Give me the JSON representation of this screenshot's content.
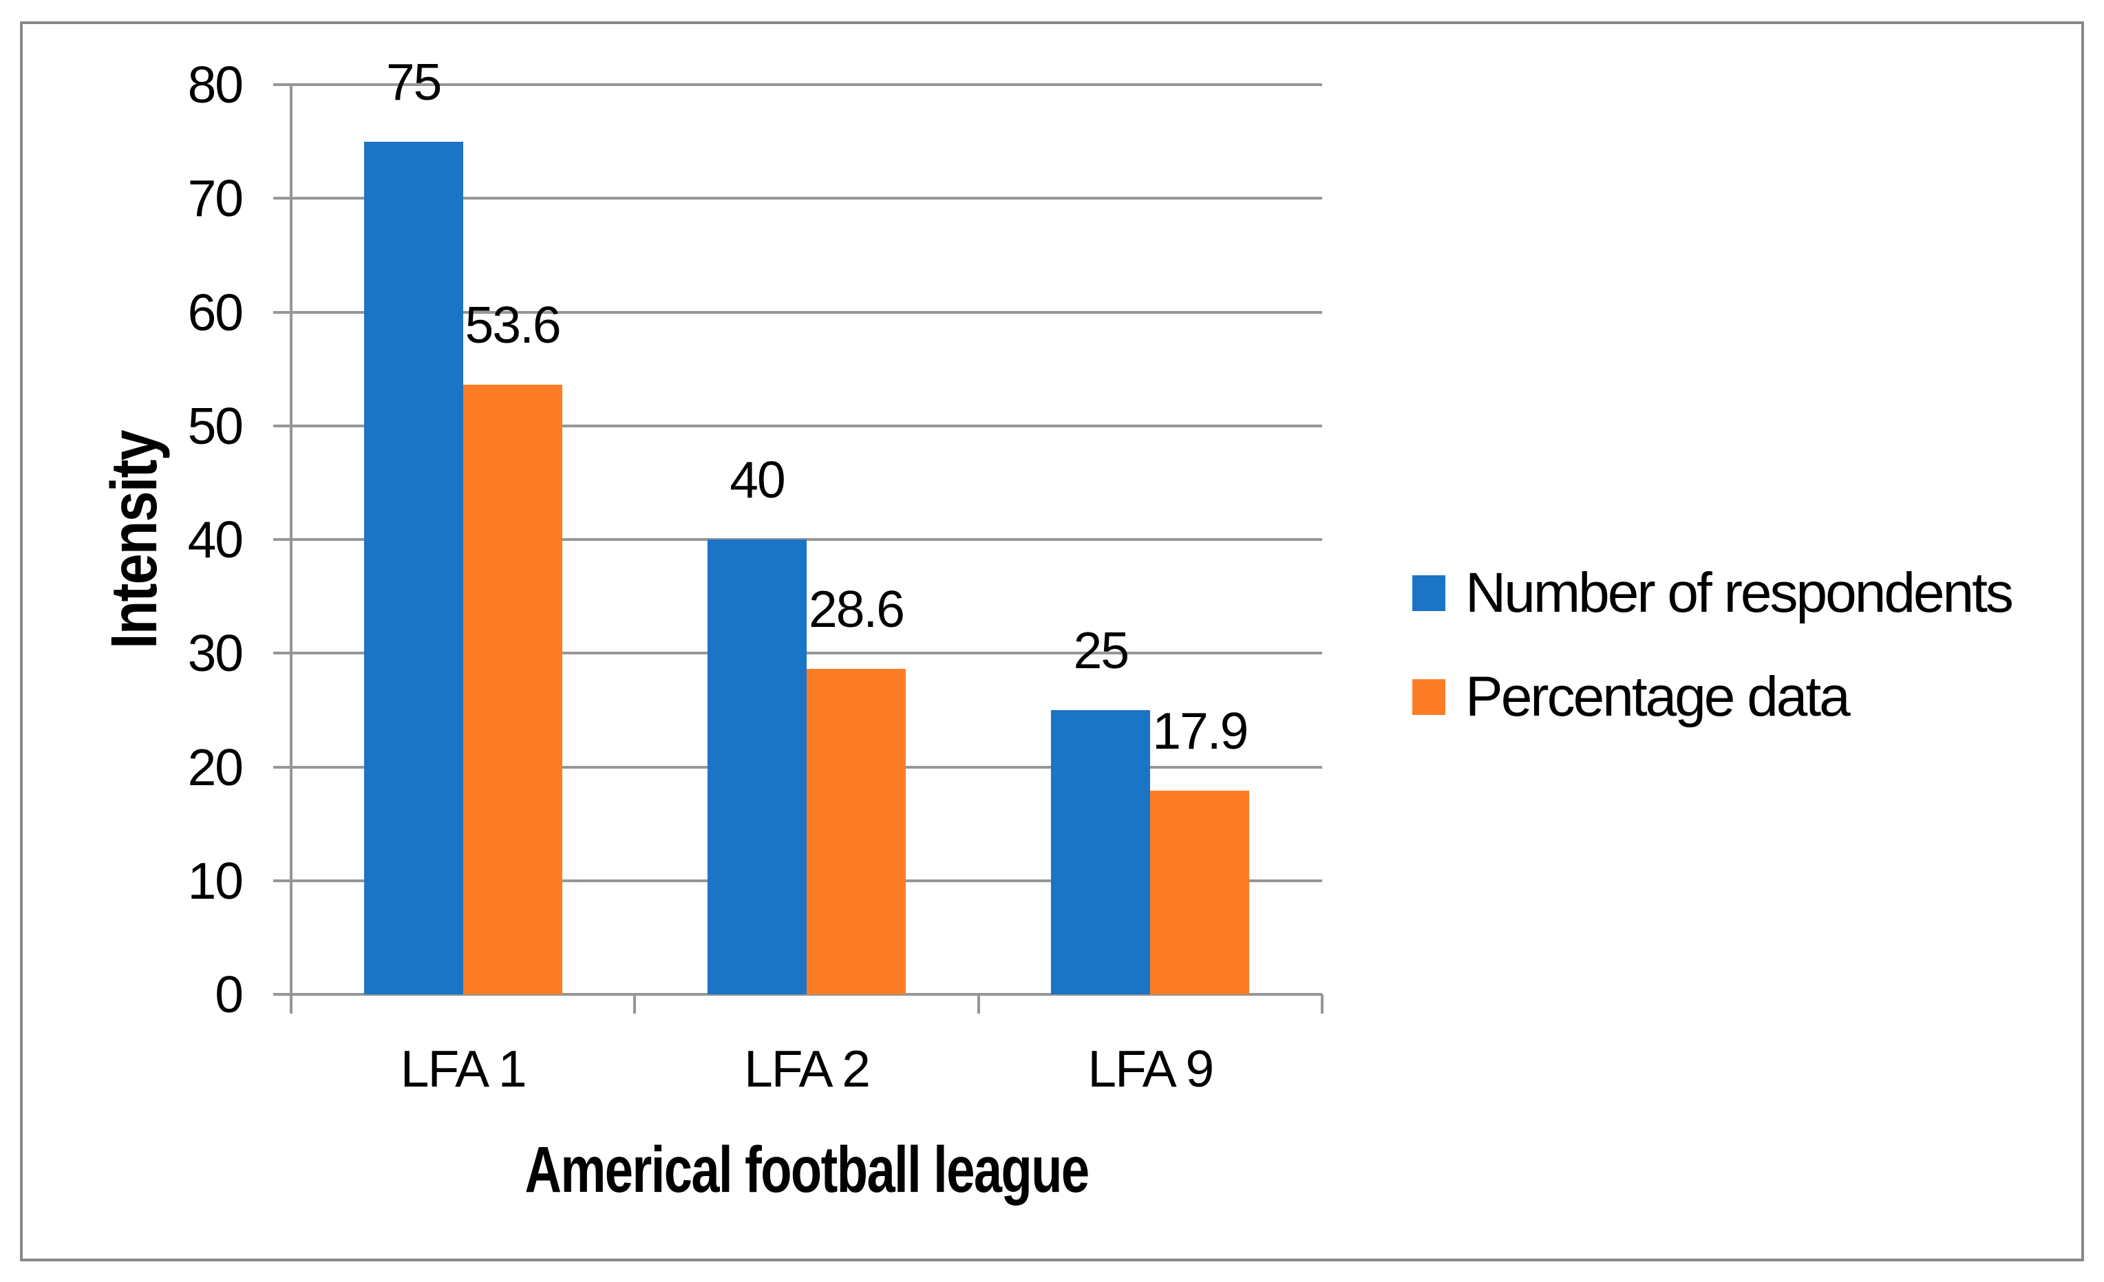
{
  "chart_data": {
    "type": "bar",
    "categories": [
      "LFA 1",
      "LFA 2",
      "LFA 9"
    ],
    "series": [
      {
        "name": "Number of respondents",
        "color": "#1B74C6",
        "values": [
          75,
          40,
          25
        ]
      },
      {
        "name": "Percentage data",
        "color": "#FD7D27",
        "values": [
          53.6,
          28.6,
          17.9
        ]
      }
    ],
    "data_labels": [
      [
        "75",
        "40",
        "25"
      ],
      [
        "53.6",
        "28.6",
        "17.9"
      ]
    ],
    "xlabel": "Americal football league",
    "ylabel": "Intensity",
    "ylim": [
      0,
      80
    ],
    "yticks": [
      0,
      10,
      20,
      30,
      40,
      50,
      60,
      70,
      80
    ],
    "grid": true,
    "legend_position": "right",
    "colors": {
      "gridline": "#969696",
      "axis": "#969696",
      "frame_border": "#898989",
      "label_text": "#000000"
    }
  }
}
